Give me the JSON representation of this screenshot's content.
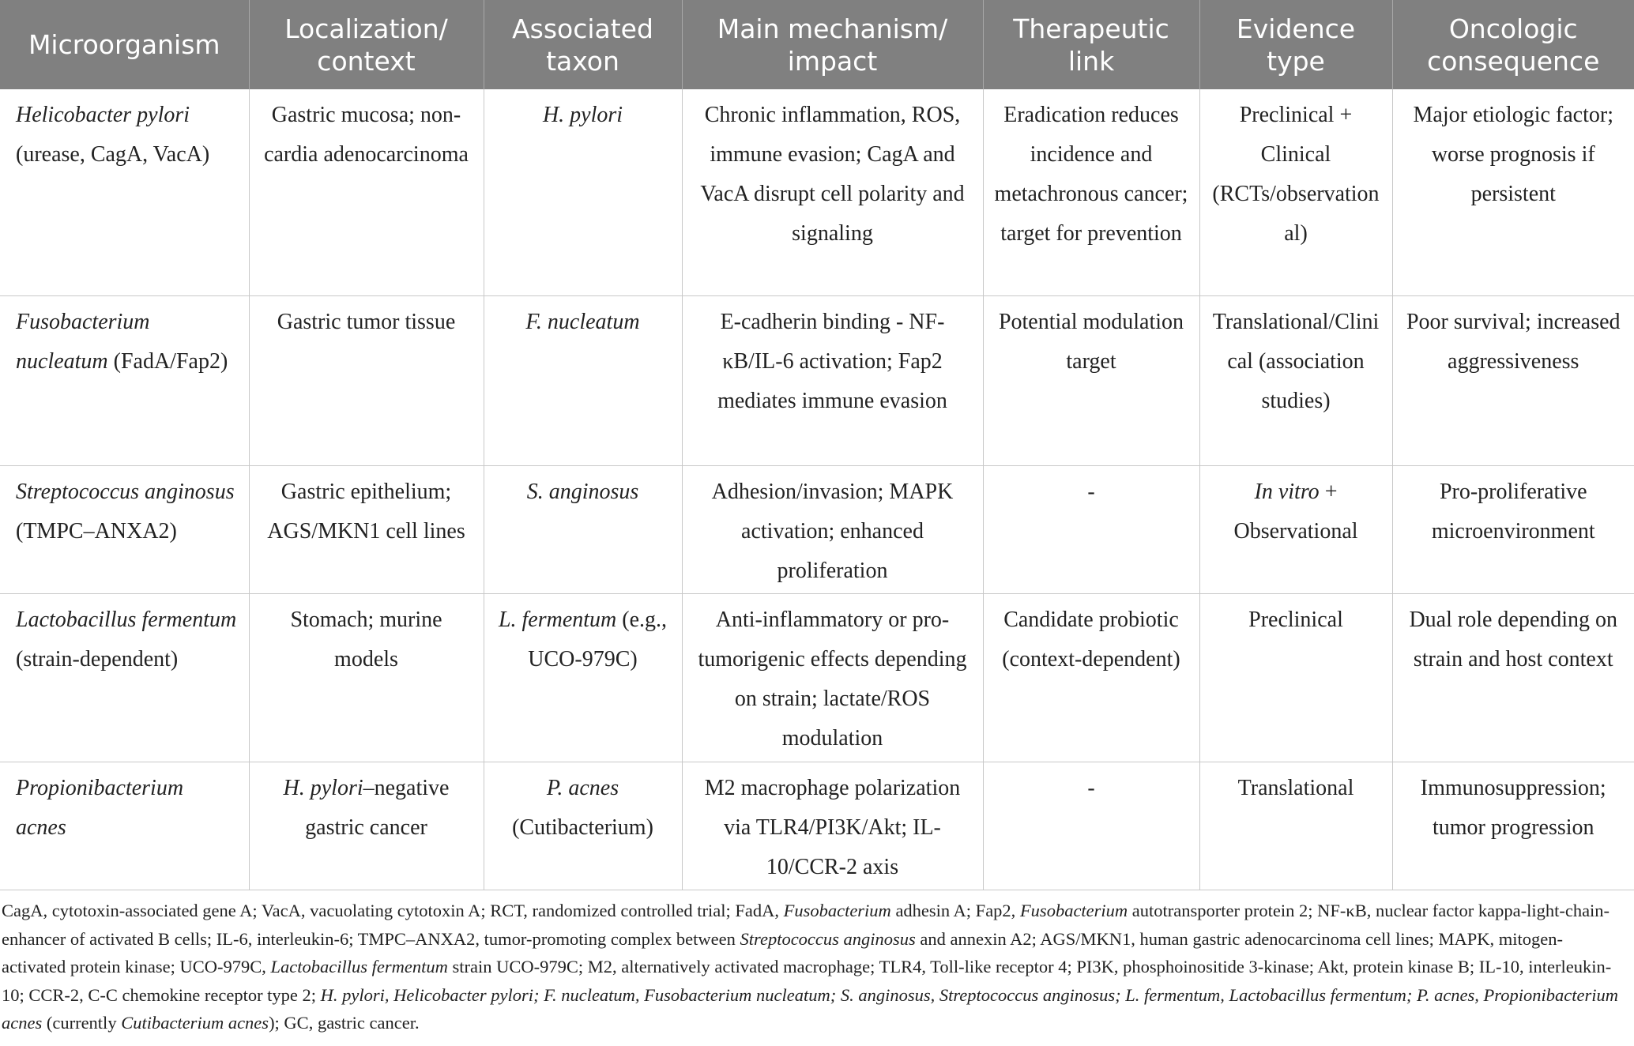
{
  "table": {
    "header": [
      "Microorganism",
      "Localization/ context",
      "Associated taxon",
      "Main mechanism/ impact",
      "Therapeutic link",
      "Evidence type",
      "Oncologic consequence"
    ],
    "rows": [
      [
        [
          {
            "text": "Helicobacter pylori",
            "style": "italic"
          },
          {
            "text": " (urease, CagA, VacA)"
          }
        ],
        [
          {
            "text": "Gastric mucosa; non-cardia adenocarcinoma"
          }
        ],
        [
          {
            "text": "H. pylori",
            "style": "italic"
          }
        ],
        [
          {
            "text": "Chronic inflammation, ROS, immune evasion; CagA and VacA disrupt cell polarity and signaling"
          }
        ],
        [
          {
            "text": "Eradication reduces incidence and metachronous cancer; target for prevention"
          }
        ],
        [
          {
            "text": "Preclinical + Clinical (RCTs/observational)"
          }
        ],
        [
          {
            "text": "Major etiologic factor; worse prognosis if persistent"
          }
        ]
      ],
      [
        [
          {
            "text": "Fusobacterium nucleatum",
            "style": "italic"
          },
          {
            "text": " (FadA/Fap2)"
          }
        ],
        [
          {
            "text": "Gastric tumor tissue"
          }
        ],
        [
          {
            "text": "F. nucleatum",
            "style": "italic"
          }
        ],
        [
          {
            "text": "E-cadherin binding - NF-κB/IL-6 activation; Fap2 mediates immune evasion"
          }
        ],
        [
          {
            "text": "Potential modulation target"
          }
        ],
        [
          {
            "text": "Translational/Clinical (association studies)"
          }
        ],
        [
          {
            "text": "Poor survival; increased aggressiveness"
          }
        ]
      ],
      [
        [
          {
            "text": "Streptococcus anginosus",
            "style": "italic"
          },
          {
            "text": " (TMPC–ANXA2)"
          }
        ],
        [
          {
            "text": "Gastric epithelium; AGS/MKN1 cell lines"
          }
        ],
        [
          {
            "text": "S. anginosus",
            "style": "italic"
          }
        ],
        [
          {
            "text": "Adhesion/invasion; MAPK activation; enhanced proliferation"
          }
        ],
        [
          {
            "text": "-"
          }
        ],
        [
          {
            "text": "In vitro",
            "style": "italic"
          },
          {
            "text": " + Observational"
          }
        ],
        [
          {
            "text": "Pro-proliferative microenvironment"
          }
        ]
      ],
      [
        [
          {
            "text": "Lactobacillus fermentum",
            "style": "italic"
          },
          {
            "text": " (strain-dependent)"
          }
        ],
        [
          {
            "text": "Stomach; murine models"
          }
        ],
        [
          {
            "text": "L. fermentum",
            "style": "italic"
          },
          {
            "text": " (e.g., UCO-979C)"
          }
        ],
        [
          {
            "text": "Anti-inflammatory or pro-tumorigenic effects depending on strain; lactate/ROS modulation"
          }
        ],
        [
          {
            "text": "Candidate probiotic (context-dependent)"
          }
        ],
        [
          {
            "text": "Preclinical"
          }
        ],
        [
          {
            "text": "Dual role depending on strain and host context"
          }
        ]
      ],
      [
        [
          {
            "text": "Propionibacterium acnes",
            "style": "italic"
          }
        ],
        [
          {
            "text": "H. pylori",
            "style": "italic"
          },
          {
            "text": "–negative gastric cancer"
          }
        ],
        [
          {
            "text": "P. acnes",
            "style": "italic"
          },
          {
            "text": " (Cutibacterium)"
          }
        ],
        [
          {
            "text": "M2 macrophage polarization via TLR4/PI3K/Akt; IL-10/CCR-2 axis"
          }
        ],
        [
          {
            "text": "-"
          }
        ],
        [
          {
            "text": "Translational"
          }
        ],
        [
          {
            "text": "Immunosuppression; tumor progression"
          }
        ]
      ]
    ]
  },
  "footnote": [
    {
      "text": "CagA, cytotoxin-associated gene A; VacA, vacuolating cytotoxin A; RCT, randomized controlled trial; FadA, "
    },
    {
      "text": "Fusobacterium",
      "style": "italic"
    },
    {
      "text": " adhesin A; Fap2, "
    },
    {
      "text": "Fusobacterium",
      "style": "italic"
    },
    {
      "text": " autotransporter protein 2; NF-κB, nuclear factor kappa-light-chain-enhancer of activated B cells; IL-6, interleukin-6; TMPC–ANXA2, tumor-promoting complex between "
    },
    {
      "text": "Streptococcus anginosus",
      "style": "italic"
    },
    {
      "text": " and annexin A2; AGS/MKN1, human gastric adenocarcinoma cell lines; MAPK, mitogen-activated protein kinase; UCO-979C, "
    },
    {
      "text": "Lactobacillus fermentum",
      "style": "italic"
    },
    {
      "text": " strain UCO-979C; M2, alternatively activated macrophage; TLR4, Toll-like receptor 4; PI3K, phosphoinositide 3-kinase; Akt, protein kinase B; IL-10, interleukin-10; CCR-2, C-C chemokine receptor type 2; "
    },
    {
      "text": "H. pylori, Helicobacter pylori; F. nucleatum, Fusobacterium nucleatum; S. anginosus, Streptococcus anginosus; L. fermentum, Lactobacillus fermentum; P. acnes, Propionibacterium acnes",
      "style": "italic"
    },
    {
      "text": " (currently "
    },
    {
      "text": "Cutibacterium acnes",
      "style": "italic"
    },
    {
      "text": "); GC, gastric cancer."
    }
  ]
}
